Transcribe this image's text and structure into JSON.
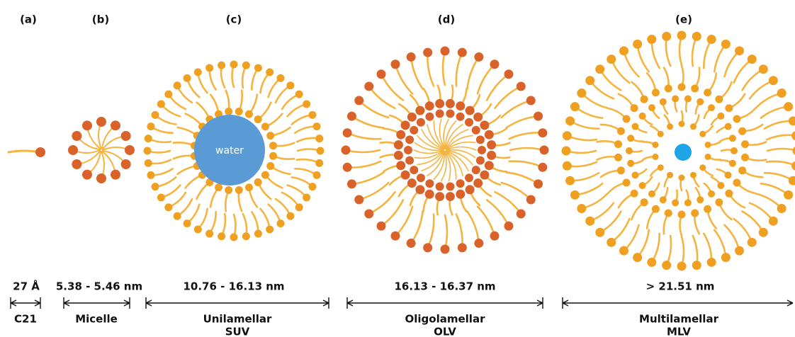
{
  "panels": [
    {
      "label": "(a)",
      "size": "27 Å",
      "name": "C21"
    },
    {
      "label": "(b)",
      "size": "5.38 - 5.46 nm",
      "name": "Micelle"
    },
    {
      "label": "(c)",
      "size": "10.76 - 16.13 nm",
      "name": "Unilamellar",
      "subname": "SUV",
      "core": "water"
    },
    {
      "label": "(d)",
      "size": "16.13 - 16.37 nm",
      "name": "Oligolamellar",
      "subname": "OLV"
    },
    {
      "label": "(e)",
      "size": "> 21.51 nm",
      "name": "Multilamellar",
      "subname": "MLV"
    }
  ]
}
